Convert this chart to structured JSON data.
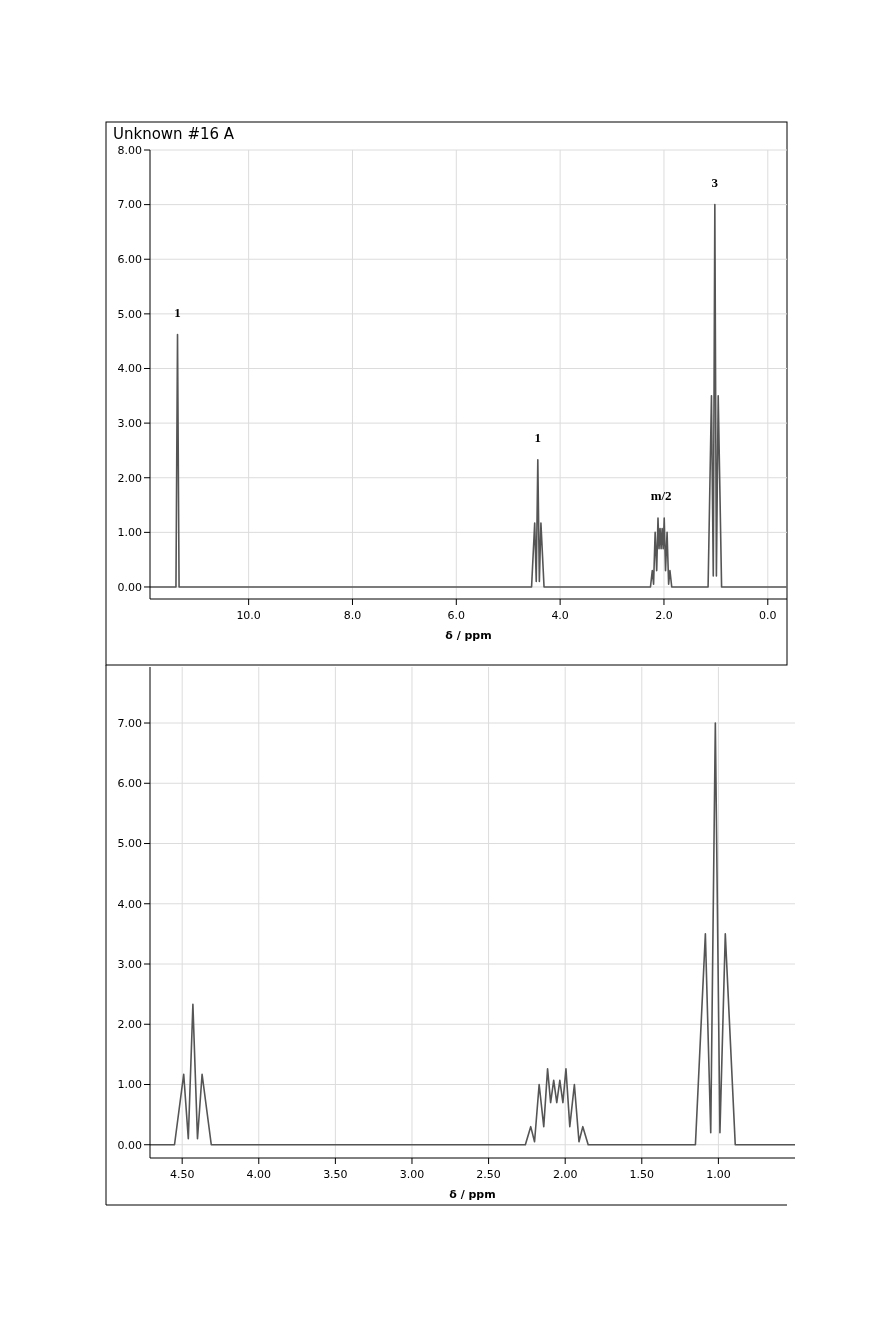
{
  "chart_data": [
    {
      "type": "line",
      "title": "Unknown #16 A",
      "xlabel": "δ / ppm",
      "grid": true,
      "xlim": [
        11.9,
        -0.37
      ],
      "ylim": [
        -0.22,
        8.0
      ],
      "xticks": [
        {
          "value": 10,
          "label": "10.0"
        },
        {
          "value": 8,
          "label": "8.0"
        },
        {
          "value": 6,
          "label": "6.0"
        },
        {
          "value": 4,
          "label": "4.0"
        },
        {
          "value": 2,
          "label": "2.0"
        },
        {
          "value": 0,
          "label": "0.0"
        }
      ],
      "yticks": [
        {
          "value": 0,
          "label": "0.00"
        },
        {
          "value": 1,
          "label": "1.00"
        },
        {
          "value": 2,
          "label": "2.00"
        },
        {
          "value": 3,
          "label": "3.00"
        },
        {
          "value": 4,
          "label": "4.00"
        },
        {
          "value": 5,
          "label": "5.00"
        },
        {
          "value": 6,
          "label": "6.00"
        },
        {
          "value": 7,
          "label": "7.00"
        },
        {
          "value": 8,
          "label": "8.00"
        }
      ],
      "annotations": [
        {
          "text": "1",
          "x": 11.37,
          "y": 4.62
        },
        {
          "text": "1",
          "x": 4.43,
          "y": 2.33
        },
        {
          "text": "m/2",
          "x": 2.055,
          "y": 1.26
        },
        {
          "text": "3",
          "x": 1.02,
          "y": 7.0
        }
      ],
      "series": [
        {
          "color": "#555555",
          "x": [
            11.9,
            11.4,
            11.37,
            11.34,
            4.55,
            4.49,
            4.46,
            4.43,
            4.4,
            4.37,
            4.31,
            2.26,
            2.225,
            2.2,
            2.17,
            2.14,
            2.115,
            2.095,
            2.075,
            2.055,
            2.035,
            2.015,
            1.995,
            1.97,
            1.94,
            1.91,
            1.885,
            1.85,
            1.15,
            1.085,
            1.05,
            1.02,
            0.99,
            0.955,
            0.89,
            -0.37
          ],
          "values": [
            0,
            0,
            4.62,
            0,
            0,
            1.17,
            0.1,
            2.33,
            0.1,
            1.17,
            0,
            0,
            0.3,
            0.05,
            1.0,
            0.3,
            1.26,
            0.7,
            1.07,
            0.7,
            1.07,
            0.7,
            1.26,
            0.3,
            1.0,
            0.05,
            0.3,
            0,
            0,
            3.5,
            0.2,
            7.0,
            0.2,
            3.5,
            0,
            0
          ]
        }
      ]
    },
    {
      "type": "line",
      "xlabel": "δ / ppm",
      "grid": true,
      "xlim": [
        4.71,
        0.5
      ],
      "ylim": [
        -0.22,
        7.93
      ],
      "xticks": [
        {
          "value": 4.5,
          "label": "4.50"
        },
        {
          "value": 4,
          "label": "4.00"
        },
        {
          "value": 3.5,
          "label": "3.50"
        },
        {
          "value": 3,
          "label": "3.00"
        },
        {
          "value": 2.5,
          "label": "2.50"
        },
        {
          "value": 2,
          "label": "2.00"
        },
        {
          "value": 1.5,
          "label": "1.50"
        },
        {
          "value": 1,
          "label": "1.00"
        }
      ],
      "yticks": [
        {
          "value": 0,
          "label": "0.00"
        },
        {
          "value": 1,
          "label": "1.00"
        },
        {
          "value": 2,
          "label": "2.00"
        },
        {
          "value": 3,
          "label": "3.00"
        },
        {
          "value": 4,
          "label": "4.00"
        },
        {
          "value": 5,
          "label": "5.00"
        },
        {
          "value": 6,
          "label": "6.00"
        },
        {
          "value": 7,
          "label": "7.00"
        }
      ],
      "series": [
        {
          "color": "#555555",
          "x": [
            4.71,
            4.55,
            4.49,
            4.46,
            4.43,
            4.4,
            4.37,
            4.31,
            2.26,
            2.225,
            2.2,
            2.17,
            2.14,
            2.115,
            2.095,
            2.075,
            2.055,
            2.035,
            2.015,
            1.995,
            1.97,
            1.94,
            1.91,
            1.885,
            1.85,
            1.15,
            1.085,
            1.05,
            1.02,
            0.99,
            0.955,
            0.89,
            0.5
          ],
          "values": [
            0,
            0,
            1.17,
            0.1,
            2.33,
            0.1,
            1.17,
            0,
            0,
            0.3,
            0.05,
            1.0,
            0.3,
            1.26,
            0.7,
            1.07,
            0.7,
            1.07,
            0.7,
            1.26,
            0.3,
            1.0,
            0.05,
            0.3,
            0,
            0,
            3.5,
            0.2,
            7.0,
            0.2,
            3.5,
            0,
            0
          ]
        }
      ]
    }
  ]
}
